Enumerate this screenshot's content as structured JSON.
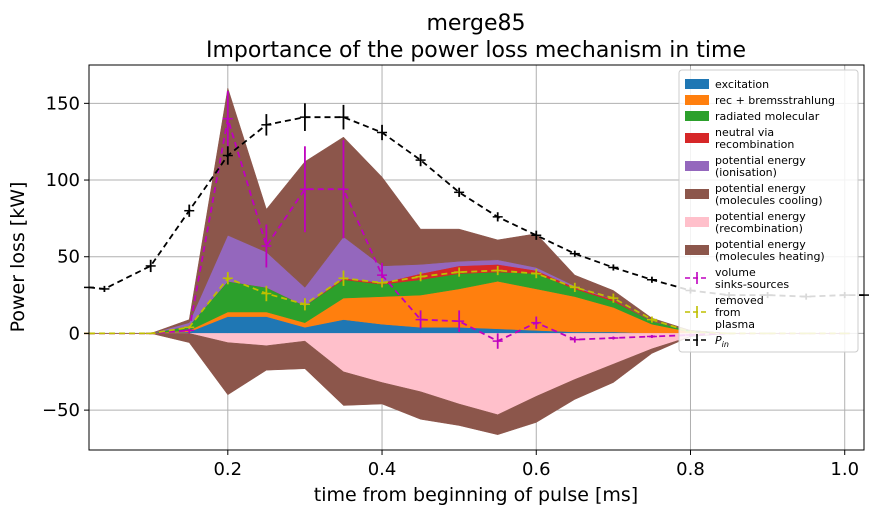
{
  "chart_data": {
    "type": "area",
    "title": "merge85",
    "subtitle": "Importance of the power loss mechanism in time",
    "xlabel": "time from beginning of pulse [ms]",
    "ylabel": "Power loss [kW]",
    "xlim": [
      0.02,
      1.025
    ],
    "ylim": [
      -76,
      175
    ],
    "xticks": [
      0.2,
      0.4,
      0.6,
      0.8,
      1.0
    ],
    "xtick_labels": [
      "0.2",
      "0.4",
      "0.6",
      "0.8",
      "1.0"
    ],
    "yticks": [
      -50,
      0,
      50,
      100,
      150
    ],
    "ytick_labels": [
      "−50",
      "0",
      "50",
      "100",
      "150"
    ],
    "grid": true,
    "legend_position": "upper right",
    "x": [
      0.02,
      0.1,
      0.15,
      0.2,
      0.25,
      0.3,
      0.35,
      0.4,
      0.45,
      0.5,
      0.55,
      0.6,
      0.65,
      0.7,
      0.75,
      0.8,
      0.85,
      0.9,
      0.95,
      1.0
    ],
    "stack_positive": [
      {
        "name": "excitation",
        "color": "#1f77b4",
        "values": [
          0,
          0,
          1,
          11,
          11,
          4,
          9,
          6,
          4,
          4,
          3,
          2,
          1,
          1,
          0,
          0,
          0,
          0,
          0,
          0
        ]
      },
      {
        "name": "rec + bremsstrahlung",
        "color": "#ff7f0e",
        "values": [
          0,
          0,
          1,
          3,
          3,
          3,
          14,
          18,
          21,
          25,
          31,
          27,
          23,
          16,
          6,
          1,
          0,
          0,
          0,
          0
        ]
      },
      {
        "name": "radiated molecular",
        "color": "#2ca02c",
        "values": [
          0,
          0,
          3,
          20,
          16,
          11,
          12,
          8,
          10,
          10,
          6,
          10,
          5,
          4,
          2,
          1,
          0,
          0,
          0,
          0
        ]
      },
      {
        "name": "neutral via\nrecombination",
        "color": "#d62728",
        "values": [
          0,
          0,
          0,
          0,
          0,
          0,
          1,
          1,
          4,
          5,
          5,
          2,
          1,
          1,
          0,
          0,
          0,
          0,
          0,
          0
        ]
      },
      {
        "name": "potential energy\n(ionisation)",
        "color": "#9467bd",
        "values": [
          0,
          0,
          2,
          30,
          23,
          12,
          27,
          11,
          6,
          3,
          3,
          2,
          1,
          0,
          0,
          0,
          0,
          0,
          0,
          0
        ]
      },
      {
        "name": "potential energy\n(molecules cooling)",
        "color": "#8c564b",
        "values": [
          0,
          0,
          2,
          96,
          28,
          82,
          65,
          58,
          23,
          21,
          13,
          22,
          7,
          6,
          2,
          0,
          0,
          0,
          0,
          0
        ]
      }
    ],
    "stack_negative": [
      {
        "name": "potential energy\n(recombination)",
        "color": "#ffc0cb",
        "values": [
          0,
          0,
          0,
          -6,
          -8,
          -5,
          -25,
          -32,
          -38,
          -46,
          -53,
          -41,
          -30,
          -20,
          -10,
          -2,
          0,
          0,
          0,
          0
        ]
      },
      {
        "name": "potential energy\n(molecules heating)",
        "color": "#8c564b",
        "values": [
          0,
          0,
          -6,
          -34,
          -16,
          -18,
          -22,
          -14,
          -18,
          -14,
          -13,
          -17,
          -13,
          -12,
          -3,
          0,
          0,
          0,
          0,
          0
        ]
      }
    ],
    "lines": [
      {
        "name": "volume\nsinks-sources",
        "color": "#bf00bf",
        "x": [
          0.02,
          0.1,
          0.15,
          0.2,
          0.25,
          0.3,
          0.35,
          0.4,
          0.45,
          0.5,
          0.55,
          0.6,
          0.65,
          0.7,
          0.75,
          0.8,
          0.85,
          0.9,
          0.95,
          1.0
        ],
        "y": [
          0,
          0,
          2,
          140,
          57,
          94,
          94,
          38,
          9,
          8,
          -5,
          7,
          -4,
          -3,
          -2,
          -1,
          0,
          0,
          0,
          0
        ],
        "err": [
          0,
          0,
          2,
          18,
          14,
          28,
          32,
          8,
          6,
          7,
          5,
          4,
          2,
          1,
          1,
          1,
          0,
          0,
          0,
          0
        ]
      },
      {
        "name": "removed\nfrom\nplasma",
        "color": "#bfbf00",
        "x": [
          0.02,
          0.1,
          0.15,
          0.2,
          0.25,
          0.3,
          0.35,
          0.4,
          0.45,
          0.5,
          0.55,
          0.6,
          0.65,
          0.7,
          0.75,
          0.8,
          0.85,
          0.9,
          0.95,
          1.0
        ],
        "y": [
          0,
          0,
          4,
          36,
          26,
          19,
          36,
          33,
          37,
          40,
          41,
          39,
          30,
          23,
          9,
          1,
          0,
          0,
          0,
          0
        ],
        "err": [
          0,
          0,
          1,
          4,
          5,
          4,
          5,
          3,
          3,
          3,
          3,
          3,
          3,
          3,
          2,
          1,
          0,
          0,
          0,
          0
        ]
      },
      {
        "name": "P_in",
        "color": "#000000",
        "x": [
          0.02,
          0.04,
          0.1,
          0.15,
          0.2,
          0.25,
          0.3,
          0.35,
          0.4,
          0.45,
          0.5,
          0.55,
          0.6,
          0.65,
          0.7,
          0.75,
          0.8,
          0.85,
          0.9,
          0.95,
          1.0,
          1.025
        ],
        "y": [
          30,
          29,
          44,
          80,
          116,
          136,
          141,
          141,
          131,
          113,
          92,
          76,
          64,
          52,
          43,
          35,
          28,
          25,
          25,
          24,
          25,
          25
        ],
        "err": [
          0,
          2,
          4,
          4,
          6,
          7,
          9,
          8,
          5,
          4,
          3,
          3,
          3,
          2,
          2,
          2,
          2,
          2,
          2,
          2,
          2,
          0
        ]
      }
    ]
  },
  "legend": [
    {
      "label": "excitation",
      "kind": "patch",
      "color": "#1f77b4"
    },
    {
      "label": "rec + bremsstrahlung",
      "kind": "patch",
      "color": "#ff7f0e"
    },
    {
      "label": "radiated molecular",
      "kind": "patch",
      "color": "#2ca02c"
    },
    {
      "label": "neutral via\nrecombination",
      "kind": "patch",
      "color": "#d62728"
    },
    {
      "label": "potential energy\n(ionisation)",
      "kind": "patch",
      "color": "#9467bd"
    },
    {
      "label": "potential energy\n(molecules cooling)",
      "kind": "patch",
      "color": "#8c564b"
    },
    {
      "label": "potential energy\n(recombination)",
      "kind": "patch",
      "color": "#ffc0cb"
    },
    {
      "label": "potential energy\n(molecules heating)",
      "kind": "patch",
      "color": "#8c564b"
    },
    {
      "label": "volume\nsinks-sources",
      "kind": "line",
      "color": "#bf00bf"
    },
    {
      "label": "removed\nfrom\nplasma",
      "kind": "line",
      "color": "#bfbf00"
    },
    {
      "label": "P",
      "sub": "in",
      "kind": "line",
      "color": "#000000"
    }
  ]
}
